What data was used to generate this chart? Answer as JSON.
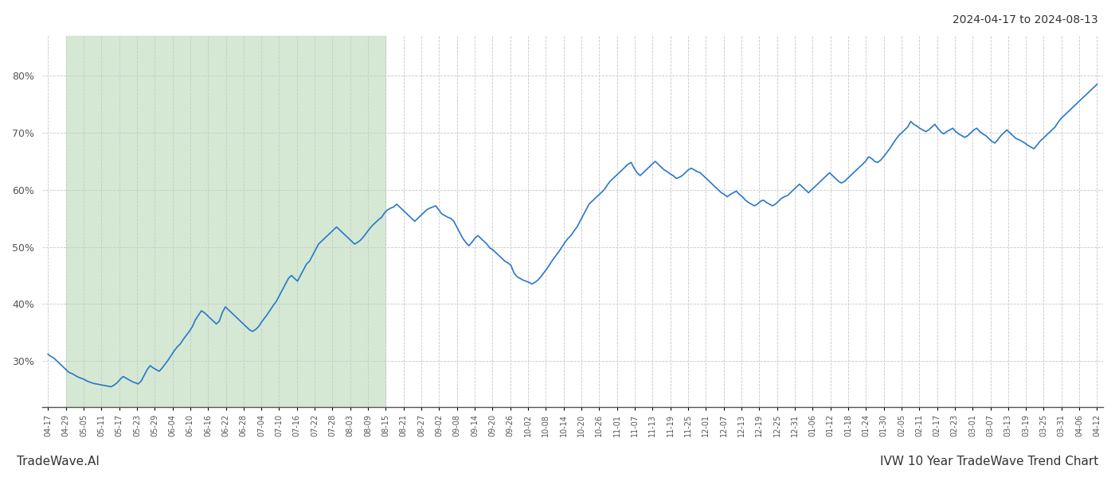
{
  "title_top_right": "2024-04-17 to 2024-08-13",
  "title_bottom_left": "TradeWave.AI",
  "title_bottom_right": "IVW 10 Year TradeWave Trend Chart",
  "line_color": "#2878c8",
  "line_width": 1.2,
  "bg_color": "#ffffff",
  "grid_color": "#c8c8c8",
  "shaded_region_color": "#d4e8d4",
  "ylim_min": 22,
  "ylim_max": 87,
  "yticks": [
    30,
    40,
    50,
    60,
    70,
    80
  ],
  "x_labels": [
    "04-17",
    "04-29",
    "05-05",
    "05-11",
    "05-17",
    "05-23",
    "05-29",
    "06-04",
    "06-10",
    "06-16",
    "06-22",
    "06-28",
    "07-04",
    "07-10",
    "07-16",
    "07-22",
    "07-28",
    "08-03",
    "08-09",
    "08-15",
    "08-21",
    "08-27",
    "09-02",
    "09-08",
    "09-14",
    "09-20",
    "09-26",
    "10-02",
    "10-08",
    "10-14",
    "10-20",
    "10-26",
    "11-01",
    "11-07",
    "11-13",
    "11-19",
    "11-25",
    "12-01",
    "12-07",
    "12-13",
    "12-19",
    "12-25",
    "12-31",
    "01-06",
    "01-12",
    "01-18",
    "01-24",
    "01-30",
    "02-05",
    "02-11",
    "02-17",
    "02-23",
    "03-01",
    "03-07",
    "03-13",
    "03-19",
    "03-25",
    "03-31",
    "04-06",
    "04-12"
  ],
  "values": [
    31.2,
    30.8,
    30.5,
    30.0,
    29.5,
    29.0,
    28.5,
    28.0,
    27.8,
    27.5,
    27.2,
    27.0,
    26.8,
    26.5,
    26.3,
    26.1,
    26.0,
    25.9,
    25.8,
    25.7,
    25.6,
    25.5,
    25.8,
    26.2,
    26.8,
    27.3,
    27.0,
    26.7,
    26.4,
    26.2,
    26.0,
    26.5,
    27.5,
    28.5,
    29.2,
    28.8,
    28.5,
    28.2,
    28.8,
    29.5,
    30.2,
    31.0,
    31.8,
    32.5,
    33.0,
    33.8,
    34.5,
    35.2,
    36.0,
    37.2,
    38.0,
    38.8,
    38.5,
    38.0,
    37.5,
    37.0,
    36.5,
    37.0,
    38.5,
    39.5,
    39.0,
    38.5,
    38.0,
    37.5,
    37.0,
    36.5,
    36.0,
    35.5,
    35.2,
    35.5,
    36.0,
    36.8,
    37.5,
    38.2,
    39.0,
    39.8,
    40.5,
    41.5,
    42.5,
    43.5,
    44.5,
    45.0,
    44.5,
    44.0,
    45.0,
    46.0,
    47.0,
    47.5,
    48.5,
    49.5,
    50.5,
    51.0,
    51.5,
    52.0,
    52.5,
    53.0,
    53.5,
    53.0,
    52.5,
    52.0,
    51.5,
    51.0,
    50.5,
    50.8,
    51.2,
    51.8,
    52.5,
    53.2,
    53.8,
    54.3,
    54.8,
    55.2,
    56.0,
    56.5,
    56.8,
    57.0,
    57.5,
    57.0,
    56.5,
    56.0,
    55.5,
    55.0,
    54.5,
    55.0,
    55.5,
    56.0,
    56.5,
    56.8,
    57.0,
    57.2,
    56.5,
    55.8,
    55.5,
    55.2,
    55.0,
    54.5,
    53.5,
    52.5,
    51.5,
    50.8,
    50.2,
    50.8,
    51.5,
    52.0,
    51.5,
    51.0,
    50.5,
    49.8,
    49.5,
    49.0,
    48.5,
    48.0,
    47.5,
    47.2,
    46.8,
    45.5,
    44.8,
    44.5,
    44.2,
    44.0,
    43.8,
    43.5,
    43.8,
    44.2,
    44.8,
    45.5,
    46.2,
    47.0,
    47.8,
    48.5,
    49.2,
    50.0,
    50.8,
    51.5,
    52.0,
    52.8,
    53.5,
    54.5,
    55.5,
    56.5,
    57.5,
    58.0,
    58.5,
    59.0,
    59.5,
    60.0,
    60.8,
    61.5,
    62.0,
    62.5,
    63.0,
    63.5,
    64.0,
    64.5,
    64.8,
    63.8,
    63.0,
    62.5,
    63.0,
    63.5,
    64.0,
    64.5,
    65.0,
    64.5,
    64.0,
    63.5,
    63.2,
    62.8,
    62.5,
    62.0,
    62.2,
    62.5,
    63.0,
    63.5,
    63.8,
    63.5,
    63.2,
    63.0,
    62.5,
    62.0,
    61.5,
    61.0,
    60.5,
    60.0,
    59.5,
    59.2,
    58.8,
    59.2,
    59.5,
    59.8,
    59.2,
    58.8,
    58.2,
    57.8,
    57.5,
    57.2,
    57.5,
    58.0,
    58.2,
    57.8,
    57.5,
    57.2,
    57.5,
    58.0,
    58.5,
    58.8,
    59.0,
    59.5,
    60.0,
    60.5,
    61.0,
    60.5,
    60.0,
    59.5,
    60.0,
    60.5,
    61.0,
    61.5,
    62.0,
    62.5,
    63.0,
    62.5,
    62.0,
    61.5,
    61.2,
    61.5,
    62.0,
    62.5,
    63.0,
    63.5,
    64.0,
    64.5,
    65.0,
    65.8,
    65.5,
    65.0,
    64.8,
    65.2,
    65.8,
    66.5,
    67.2,
    68.0,
    68.8,
    69.5,
    70.0,
    70.5,
    71.0,
    72.0,
    71.5,
    71.2,
    70.8,
    70.5,
    70.2,
    70.5,
    71.0,
    71.5,
    70.8,
    70.2,
    69.8,
    70.2,
    70.5,
    70.8,
    70.2,
    69.8,
    69.5,
    69.2,
    69.5,
    70.0,
    70.5,
    70.8,
    70.2,
    69.8,
    69.5,
    69.0,
    68.5,
    68.2,
    68.8,
    69.5,
    70.0,
    70.5,
    70.0,
    69.5,
    69.0,
    68.8,
    68.5,
    68.2,
    67.8,
    67.5,
    67.2,
    67.8,
    68.5,
    69.0,
    69.5,
    70.0,
    70.5,
    71.0,
    71.8,
    72.5,
    73.0,
    73.5,
    74.0,
    74.5,
    75.0,
    75.5,
    76.0,
    76.5,
    77.0,
    77.5,
    78.0,
    78.5
  ],
  "shaded_start_label": "04-29",
  "shaded_end_label": "08-15"
}
